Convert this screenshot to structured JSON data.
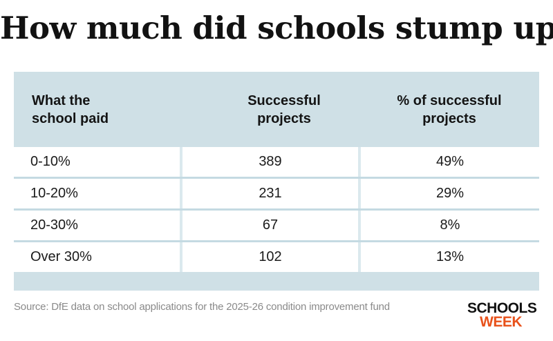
{
  "title": "How much did schools stump up?",
  "colors": {
    "header_bg": "#cfe0e6",
    "row_bg": "#ffffff",
    "row_divider": "#c4dae2",
    "logo_dark": "#111111",
    "logo_accent": "#e8521b",
    "source_text": "#8a8a8a"
  },
  "chart_data": {
    "type": "table",
    "title": "How much did schools stump up?",
    "columns": [
      "What the school paid",
      "Successful projects",
      "% of successful projects"
    ],
    "rows": [
      [
        "0-10%",
        "389",
        "49%"
      ],
      [
        "10-20%",
        "231",
        "29%"
      ],
      [
        "20-30%",
        "67",
        "8%"
      ],
      [
        "Over 30%",
        "102",
        "13%"
      ]
    ]
  },
  "table": {
    "headers": [
      {
        "line1": "What the",
        "line2": "school paid"
      },
      {
        "line1": "Successful",
        "line2": "projects"
      },
      {
        "line1": "% of successful",
        "line2": "projects"
      }
    ]
  },
  "source": "Source: DfE data on school applications for the 2025-26 condition improvement fund",
  "logo": {
    "line1": "SCHOOLS",
    "line2": "WEEK"
  }
}
